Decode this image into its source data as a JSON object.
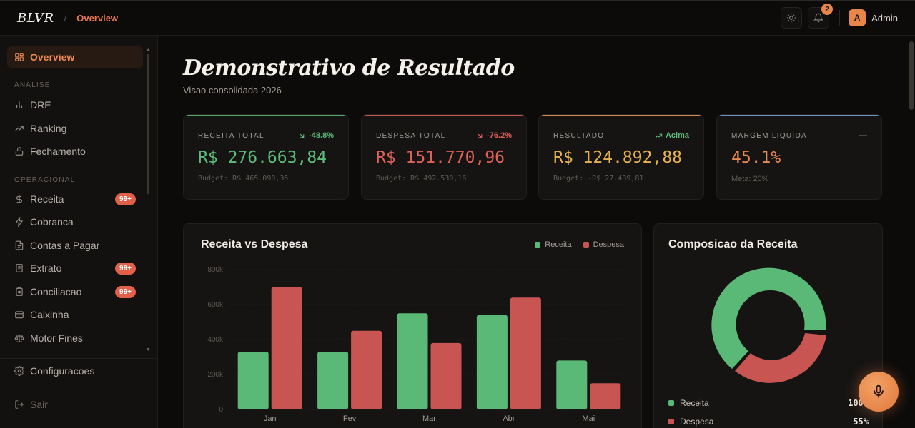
{
  "topbar": {
    "logo": "BLVR",
    "separator": "/",
    "breadcrumb": "Overview",
    "notifications": "2",
    "avatar_initial": "A",
    "user_name": "Admin"
  },
  "sidebar": {
    "overview": "Overview",
    "section_analise": "ANALISE",
    "analise_items": [
      "DRE",
      "Ranking",
      "Fechamento"
    ],
    "section_operacional": "OPERACIONAL",
    "operacional_items": [
      {
        "label": "Receita",
        "badge": "99+"
      },
      {
        "label": "Cobranca",
        "badge": ""
      },
      {
        "label": "Contas a Pagar",
        "badge": ""
      },
      {
        "label": "Extrato",
        "badge": "99+"
      },
      {
        "label": "Conciliacao",
        "badge": "99+"
      },
      {
        "label": "Caixinha",
        "badge": ""
      },
      {
        "label": "Motor Fines",
        "badge": ""
      }
    ],
    "settings": "Configuracoes",
    "logout": "Sair"
  },
  "page": {
    "title": "Demonstrativo de Resultado",
    "subtitle": "Visao consolidada 2026"
  },
  "kpis": [
    {
      "label": "RECEITA TOTAL",
      "delta": "-48.8%",
      "value": "R$ 276.663,84",
      "foot": "Budget: R$ 465.090,35",
      "color": "#5dbb7b",
      "delta_color": "#5dbb7b",
      "top_color": "#4fa56c"
    },
    {
      "label": "DESPESA TOTAL",
      "delta": "-76.2%",
      "value": "R$ 151.770,96",
      "foot": "Budget: R$ 492.530,16",
      "color": "#e0605a",
      "delta_color": "#e0605a",
      "top_color": "#c95551"
    },
    {
      "label": "RESULTADO",
      "delta": "Acima",
      "value": "R$ 124.892,88",
      "foot": "Budget: -R$ 27.439,81",
      "color": "#e8b34e",
      "delta_color": "#5dbb7b",
      "top_color": "#d98a55"
    },
    {
      "label": "MARGEM LIQUIDA",
      "delta": "—",
      "value": "45.1%",
      "foot": "Meta: 20%",
      "color": "#eb8a50",
      "delta_color": "#6a645d",
      "top_color": "#6a93c2"
    }
  ],
  "bar_card": {
    "title": "Receita vs Despesa",
    "legend_receita": "Receita",
    "legend_despesa": "Despesa"
  },
  "pie_card": {
    "title": "Composicao da Receita",
    "items": [
      {
        "label": "Receita",
        "pct": "100%"
      },
      {
        "label": "Despesa",
        "pct": "55%"
      }
    ]
  },
  "colors": {
    "receita": "#5bb978",
    "despesa": "#c95553",
    "accent": "#e8774a"
  },
  "chart_data": {
    "type": "bar",
    "categories": [
      "Jan",
      "Fev",
      "Mar",
      "Abr",
      "Mai"
    ],
    "series": [
      {
        "name": "Receita",
        "values": [
          330000,
          330000,
          550000,
          540000,
          280000
        ]
      },
      {
        "name": "Despesa",
        "values": [
          700000,
          450000,
          380000,
          640000,
          150000
        ]
      }
    ],
    "y_ticks": [
      "0",
      "200k",
      "400k",
      "600k",
      "800k"
    ],
    "ylim": [
      0,
      800000
    ],
    "title": "Receita vs Despesa",
    "legend": "top-right",
    "grid": true
  }
}
